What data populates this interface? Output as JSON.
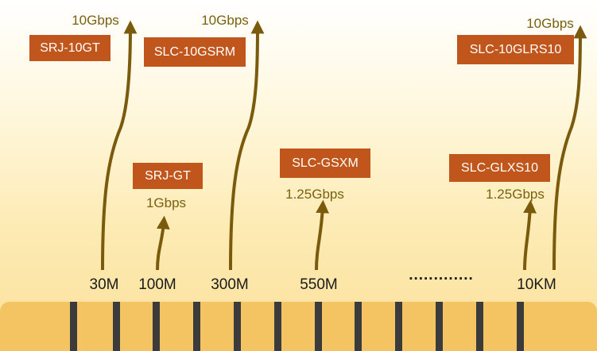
{
  "colors": {
    "arrow": "#7a5a0c",
    "label_box": "#c0561b",
    "ruler": "#f5c462",
    "tick": "#3b3b3b"
  },
  "modules": [
    {
      "model": "SRJ-10GT",
      "speed": "10Gbps",
      "distance": "30M"
    },
    {
      "model": "SRJ-GT",
      "speed": "1Gbps",
      "distance": "100M"
    },
    {
      "model": "SLC-10GSRM",
      "speed": "10Gbps",
      "distance": "300M"
    },
    {
      "model": "SLC-GSXM",
      "speed": "1.25Gbps",
      "distance": "550M"
    },
    {
      "model": "SLC-GLXS10",
      "speed": "1.25Gbps",
      "distance": ""
    },
    {
      "model": "SLC-10GLRS10",
      "speed": "10Gbps",
      "distance": "10KM"
    }
  ],
  "ellipsis": "............."
}
